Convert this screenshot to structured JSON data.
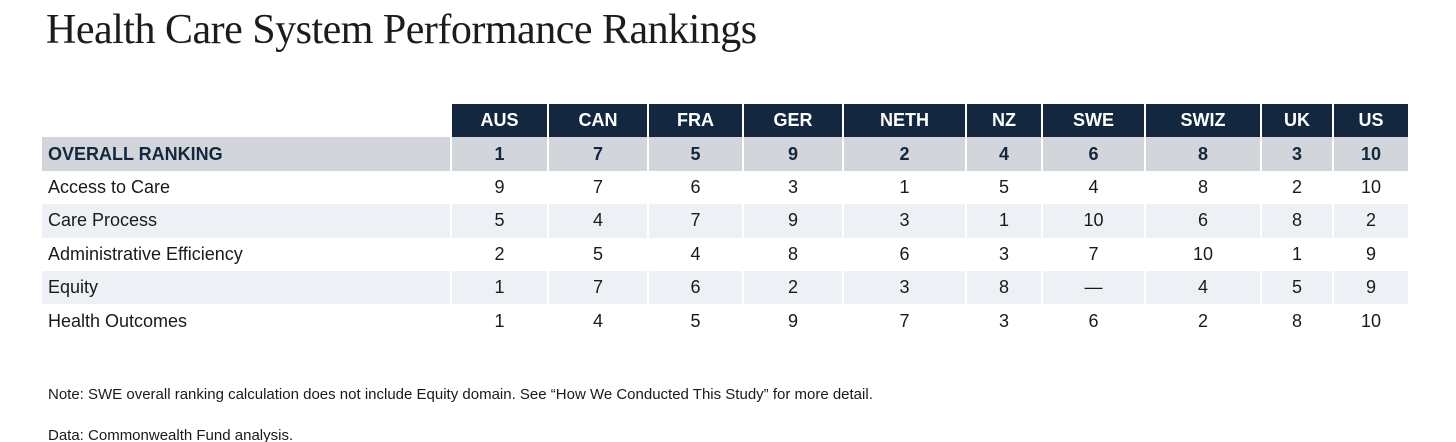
{
  "chart_data": {
    "type": "table",
    "title": "Health Care System Performance Rankings",
    "columns": [
      "AUS",
      "CAN",
      "FRA",
      "GER",
      "NETH",
      "NZ",
      "SWE",
      "SWIZ",
      "UK",
      "US"
    ],
    "rows": [
      {
        "label": "OVERALL RANKING",
        "values": [
          "1",
          "7",
          "5",
          "9",
          "2",
          "4",
          "6",
          "8",
          "3",
          "10"
        ]
      },
      {
        "label": "Access to Care",
        "values": [
          "9",
          "7",
          "6",
          "3",
          "1",
          "5",
          "4",
          "8",
          "2",
          "10"
        ]
      },
      {
        "label": "Care Process",
        "values": [
          "5",
          "4",
          "7",
          "9",
          "3",
          "1",
          "10",
          "6",
          "8",
          "2"
        ]
      },
      {
        "label": "Administrative Efficiency",
        "values": [
          "2",
          "5",
          "4",
          "8",
          "6",
          "3",
          "7",
          "10",
          "1",
          "9"
        ]
      },
      {
        "label": "Equity",
        "values": [
          "1",
          "7",
          "6",
          "2",
          "3",
          "8",
          "—",
          "4",
          "5",
          "9"
        ]
      },
      {
        "label": "Health Outcomes",
        "values": [
          "1",
          "4",
          "5",
          "9",
          "7",
          "3",
          "6",
          "2",
          "8",
          "10"
        ]
      }
    ],
    "note": "Note: SWE overall ranking calculation does not include Equity domain. See “How We Conducted This Study” for more detail.",
    "source": "Data: Commonwealth Fund analysis."
  },
  "colors": {
    "header_bg": "#13273f",
    "overall_row_bg": "#d2d5d9",
    "stripe_row_bg": "#edf1f5"
  }
}
